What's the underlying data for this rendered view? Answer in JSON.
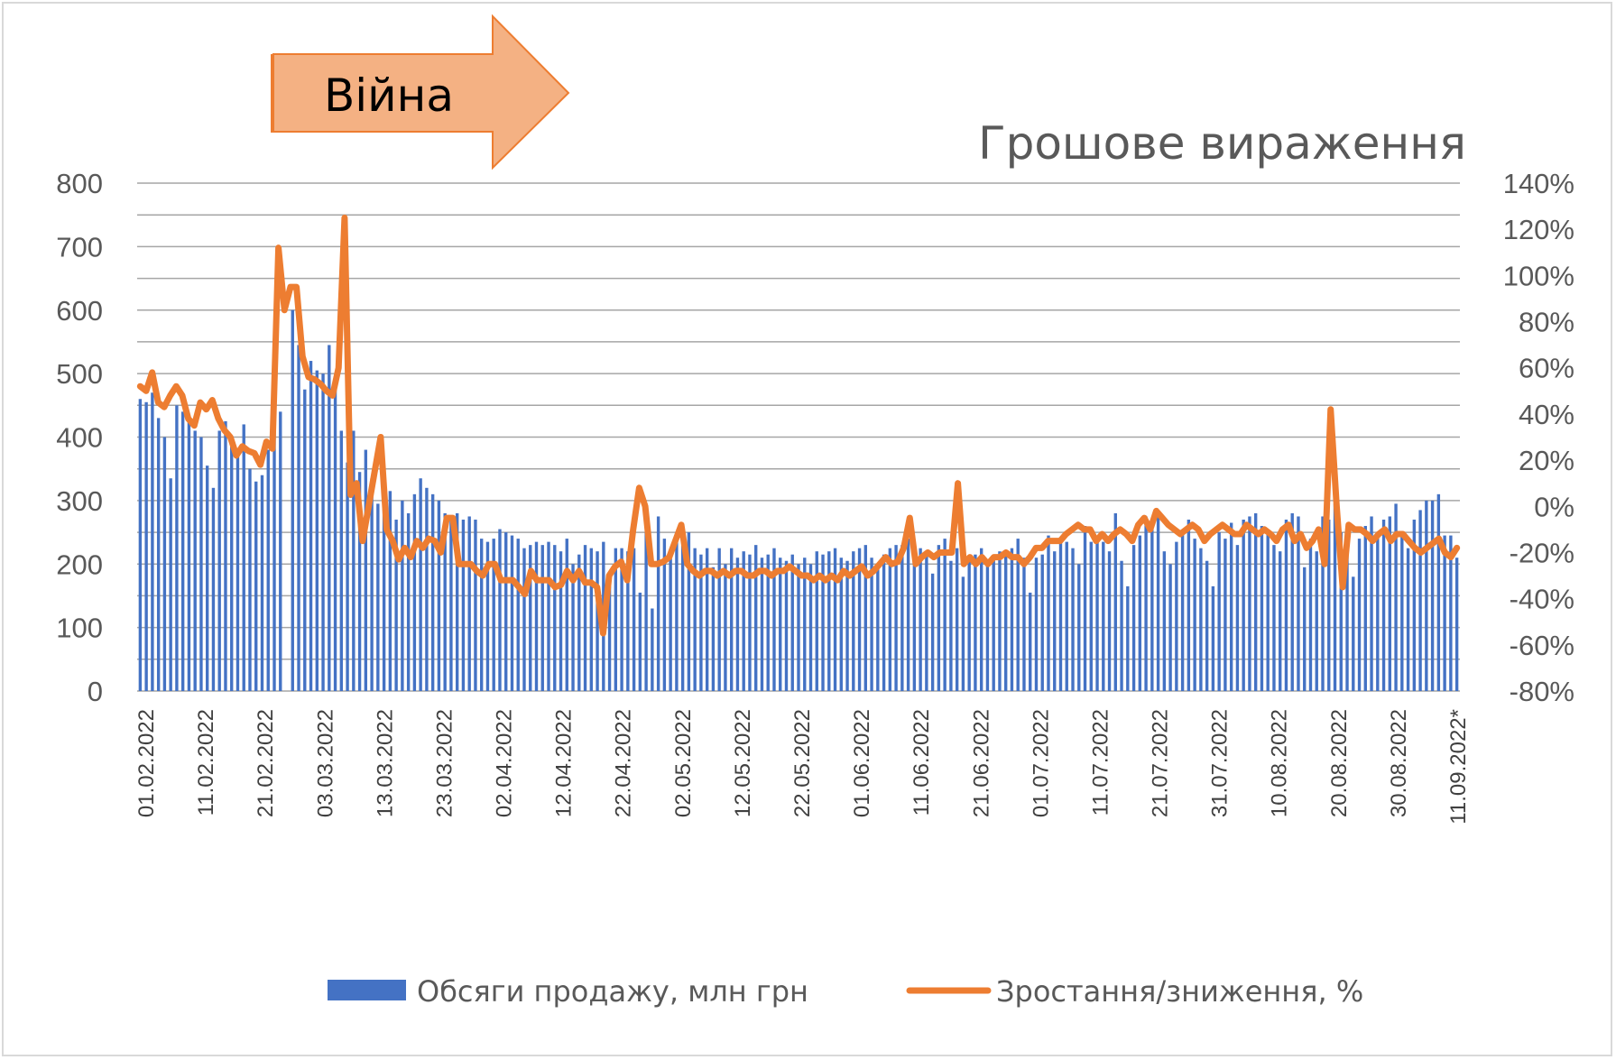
{
  "chart_data": {
    "type": "bar+line",
    "title": "Грошове вираження",
    "annotation": "Війна",
    "left_axis": {
      "ylim": [
        0,
        800
      ],
      "ticks": [
        "0",
        "100",
        "200",
        "300",
        "400",
        "500",
        "600",
        "700",
        "800"
      ]
    },
    "right_axis": {
      "ylim": [
        -80,
        140
      ],
      "ticks": [
        "-80%",
        "-60%",
        "-40%",
        "-20%",
        "0%",
        "20%",
        "40%",
        "60%",
        "80%",
        "100%",
        "120%",
        "140%"
      ]
    },
    "x_tick_labels": [
      "01.02.2022",
      "11.02.2022",
      "21.02.2022",
      "03.03.2022",
      "13.03.2022",
      "23.03.2022",
      "02.04.2022",
      "12.04.2022",
      "22.04.2022",
      "02.05.2022",
      "12.05.2022",
      "22.05.2022",
      "01.06.2022",
      "11.06.2022",
      "21.06.2022",
      "01.07.2022",
      "11.07.2022",
      "21.07.2022",
      "31.07.2022",
      "10.08.2022",
      "20.08.2022",
      "30.08.2022",
      "11.09.2022*"
    ],
    "grid": true,
    "legend_position": "bottom",
    "colors": {
      "bars": "#4472c4",
      "line": "#ed7d31",
      "annotation_fill": "#f4b183"
    },
    "series": [
      {
        "name": "Обсяги продажу, млн грн",
        "type": "bar",
        "axis": "left",
        "values": [
          460,
          455,
          470,
          430,
          400,
          335,
          450,
          440,
          425,
          410,
          400,
          355,
          320,
          410,
          425,
          395,
          380,
          420,
          350,
          330,
          340,
          380,
          415,
          440,
          0,
          600,
          545,
          475,
          520,
          505,
          500,
          545,
          495,
          410,
          360,
          410,
          345,
          380,
          335,
          295,
          310,
          315,
          270,
          300,
          280,
          310,
          335,
          320,
          310,
          300,
          280,
          275,
          280,
          270,
          275,
          270,
          240,
          235,
          240,
          255,
          250,
          245,
          240,
          225,
          230,
          235,
          230,
          235,
          230,
          220,
          240,
          200,
          215,
          230,
          225,
          220,
          235,
          165,
          225,
          225,
          220,
          225,
          155,
          250,
          130,
          275,
          240,
          220,
          250,
          240,
          250,
          225,
          215,
          225,
          195,
          225,
          200,
          225,
          210,
          220,
          215,
          230,
          210,
          215,
          225,
          210,
          205,
          215,
          200,
          210,
          200,
          220,
          215,
          220,
          225,
          210,
          205,
          220,
          225,
          230,
          210,
          195,
          215,
          225,
          230,
          230,
          240,
          200,
          225,
          215,
          185,
          230,
          240,
          205,
          225,
          180,
          210,
          215,
          225,
          200,
          210,
          220,
          215,
          225,
          240,
          210,
          155,
          210,
          215,
          245,
          220,
          240,
          235,
          225,
          200,
          260,
          235,
          240,
          235,
          220,
          280,
          205,
          165,
          230,
          245,
          275,
          260,
          280,
          220,
          200,
          235,
          250,
          270,
          240,
          225,
          205,
          165,
          250,
          240,
          265,
          230,
          270,
          275,
          280,
          260,
          250,
          230,
          220,
          270,
          280,
          275,
          195,
          240,
          220,
          275,
          270,
          295,
          250,
          225,
          180,
          240,
          260,
          275,
          245,
          270,
          275,
          295,
          245,
          225,
          270,
          285,
          300,
          300,
          310,
          245,
          245,
          210
        ],
        "note": "Bar heights estimated from chart"
      },
      {
        "name": "Зростання/зниження, %",
        "type": "line",
        "axis": "right",
        "values": [
          52,
          50,
          58,
          45,
          43,
          48,
          52,
          48,
          38,
          35,
          45,
          42,
          46,
          38,
          33,
          30,
          22,
          26,
          24,
          23,
          18,
          28,
          25,
          112,
          85,
          95,
          95,
          65,
          56,
          55,
          53,
          50,
          48,
          60,
          125,
          5,
          10,
          -15,
          0,
          15,
          30,
          -10,
          -15,
          -23,
          -18,
          -22,
          -15,
          -18,
          -14,
          -15,
          -20,
          -5,
          -5,
          -25,
          -25,
          -25,
          -28,
          -30,
          -25,
          -25,
          -32,
          -32,
          -32,
          -35,
          -38,
          -28,
          -32,
          -32,
          -32,
          -35,
          -34,
          -28,
          -32,
          -28,
          -33,
          -33,
          -35,
          -55,
          -30,
          -26,
          -24,
          -32,
          -10,
          8,
          0,
          -25,
          -25,
          -24,
          -22,
          -15,
          -8,
          -25,
          -28,
          -30,
          -28,
          -28,
          -30,
          -28,
          -30,
          -28,
          -28,
          -30,
          -30,
          -28,
          -28,
          -30,
          -28,
          -28,
          -26,
          -28,
          -30,
          -30,
          -32,
          -30,
          -32,
          -30,
          -32,
          -28,
          -30,
          -28,
          -26,
          -30,
          -28,
          -25,
          -22,
          -25,
          -24,
          -18,
          -5,
          -25,
          -22,
          -20,
          -22,
          -20,
          -20,
          -20,
          10,
          -25,
          -22,
          -25,
          -22,
          -25,
          -22,
          -22,
          -20,
          -22,
          -22,
          -25,
          -22,
          -18,
          -18,
          -15,
          -15,
          -15,
          -12,
          -10,
          -8,
          -10,
          -10,
          -15,
          -12,
          -15,
          -12,
          -10,
          -12,
          -15,
          -8,
          -5,
          -10,
          -2,
          -5,
          -8,
          -10,
          -12,
          -10,
          -8,
          -10,
          -15,
          -12,
          -10,
          -8,
          -10,
          -12,
          -12,
          -8,
          -10,
          -12,
          -10,
          -12,
          -15,
          -10,
          -8,
          -15,
          -12,
          -18,
          -15,
          -10,
          -25,
          42,
          0,
          -35,
          -8,
          -10,
          -10,
          -12,
          -15,
          -12,
          -10,
          -15,
          -12,
          -12,
          -15,
          -18,
          -20,
          -18,
          -16,
          -14,
          -20,
          -22,
          -18
        ],
        "note": "Values estimated from chart"
      }
    ]
  }
}
